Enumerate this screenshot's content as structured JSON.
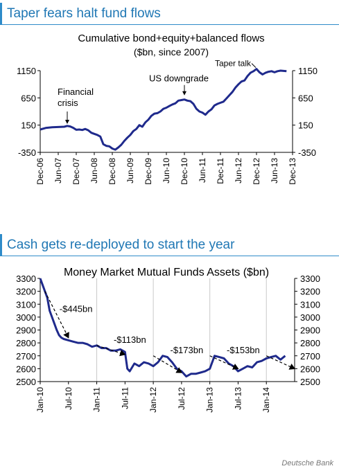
{
  "panels": [
    {
      "header": "Taper fears halt fund flows",
      "chart_data": {
        "type": "line",
        "title": "Cumulative bond+equity+balanced flows",
        "subtitle": "($bn, since 2007)",
        "xlabel": "",
        "ylabel": "",
        "x_ticks": [
          "Dec-06",
          "Jun-07",
          "Dec-07",
          "Jun-08",
          "Dec-08",
          "Jun-09",
          "Dec-09",
          "Jun-10",
          "Dec-10",
          "Jun-11",
          "Dec-11",
          "Jun-12",
          "Dec-12",
          "Jun-13",
          "Dec-13"
        ],
        "y_ticks": [
          1150,
          650,
          150,
          -350
        ],
        "ylim": [
          -350,
          1150
        ],
        "xlim": [
          0,
          84
        ],
        "grid": false,
        "series": [
          {
            "color": "#1F2A8C",
            "points": [
              [
                0,
                70
              ],
              [
                2,
                100
              ],
              [
                4,
                110
              ],
              [
                6,
                115
              ],
              [
                8,
                120
              ],
              [
                9,
                135
              ],
              [
                10,
                125
              ],
              [
                11,
                100
              ],
              [
                12,
                65
              ],
              [
                13,
                70
              ],
              [
                14,
                60
              ],
              [
                15,
                80
              ],
              [
                16,
                55
              ],
              [
                17,
                10
              ],
              [
                18,
                -10
              ],
              [
                19,
                -30
              ],
              [
                20,
                -60
              ],
              [
                21,
                -200
              ],
              [
                22,
                -230
              ],
              [
                23,
                -240
              ],
              [
                24,
                -280
              ],
              [
                25,
                -300
              ],
              [
                26,
                -260
              ],
              [
                27,
                -210
              ],
              [
                28,
                -140
              ],
              [
                29,
                -80
              ],
              [
                30,
                -30
              ],
              [
                31,
                40
              ],
              [
                32,
                80
              ],
              [
                33,
                150
              ],
              [
                34,
                120
              ],
              [
                35,
                200
              ],
              [
                36,
                250
              ],
              [
                37,
                320
              ],
              [
                38,
                360
              ],
              [
                39,
                370
              ],
              [
                40,
                400
              ],
              [
                41,
                450
              ],
              [
                42,
                470
              ],
              [
                43,
                500
              ],
              [
                44,
                530
              ],
              [
                45,
                550
              ],
              [
                46,
                600
              ],
              [
                47,
                610
              ],
              [
                48,
                620
              ],
              [
                49,
                600
              ],
              [
                50,
                590
              ],
              [
                51,
                540
              ],
              [
                52,
                450
              ],
              [
                53,
                400
              ],
              [
                54,
                380
              ],
              [
                55,
                340
              ],
              [
                56,
                400
              ],
              [
                57,
                440
              ],
              [
                58,
                510
              ],
              [
                59,
                540
              ],
              [
                60,
                560
              ],
              [
                61,
                580
              ],
              [
                62,
                640
              ],
              [
                63,
                700
              ],
              [
                64,
                760
              ],
              [
                65,
                840
              ],
              [
                66,
                900
              ],
              [
                67,
                950
              ],
              [
                68,
                970
              ],
              [
                69,
                1050
              ],
              [
                70,
                1110
              ],
              [
                71,
                1140
              ],
              [
                72,
                1180
              ],
              [
                73,
                1120
              ],
              [
                74,
                1080
              ],
              [
                75,
                1110
              ],
              [
                76,
                1130
              ],
              [
                77,
                1140
              ],
              [
                78,
                1120
              ],
              [
                79,
                1140
              ],
              [
                80,
                1150
              ],
              [
                81,
                1145
              ],
              [
                82,
                1140
              ]
            ]
          }
        ],
        "annotations": [
          {
            "text": "Financial crisis",
            "x": 9,
            "y": 120
          },
          {
            "text": "US downgrade",
            "x": 48,
            "y": 620
          },
          {
            "text": "Taper talk",
            "x": 72,
            "y": 1180
          }
        ]
      }
    },
    {
      "header": "Cash gets re-deployed to start the year",
      "chart_data": {
        "type": "line",
        "title": "Money Market Mutual Funds Assets ($bn)",
        "xlabel": "",
        "ylabel": "",
        "x_ticks": [
          "Jan-10",
          "Jul-10",
          "Jan-11",
          "Jul-11",
          "Jan-12",
          "Jul-12",
          "Jan-13",
          "Jul-13",
          "Jan-14"
        ],
        "y_ticks": [
          3300,
          3200,
          3100,
          3000,
          2900,
          2800,
          2700,
          2600,
          2500
        ],
        "ylim": [
          2500,
          3300
        ],
        "xlim": [
          0,
          54
        ],
        "grid": "vertical-at-january",
        "series": [
          {
            "color": "#1F2A8C",
            "points": [
              [
                0,
                3300
              ],
              [
                0.5,
                3250
              ],
              [
                1,
                3200
              ],
              [
                1.5,
                3150
              ],
              [
                2,
                3050
              ],
              [
                2.5,
                3000
              ],
              [
                3,
                2950
              ],
              [
                3.5,
                2900
              ],
              [
                4,
                2860
              ],
              [
                4.5,
                2840
              ],
              [
                5,
                2830
              ],
              [
                6,
                2820
              ],
              [
                7,
                2810
              ],
              [
                8,
                2800
              ],
              [
                9,
                2800
              ],
              [
                10,
                2790
              ],
              [
                11,
                2770
              ],
              [
                12,
                2780
              ],
              [
                13,
                2760
              ],
              [
                14,
                2760
              ],
              [
                15,
                2740
              ],
              [
                16,
                2740
              ],
              [
                17,
                2750
              ],
              [
                18,
                2730
              ],
              [
                18.5,
                2600
              ],
              [
                19,
                2580
              ],
              [
                20,
                2640
              ],
              [
                21,
                2620
              ],
              [
                22,
                2650
              ],
              [
                23,
                2640
              ],
              [
                24,
                2620
              ],
              [
                25,
                2650
              ],
              [
                26,
                2700
              ],
              [
                27,
                2690
              ],
              [
                28,
                2650
              ],
              [
                29,
                2600
              ],
              [
                30,
                2580
              ],
              [
                31,
                2540
              ],
              [
                32,
                2560
              ],
              [
                33,
                2560
              ],
              [
                34,
                2570
              ],
              [
                35,
                2580
              ],
              [
                36,
                2600
              ],
              [
                37,
                2700
              ],
              [
                38,
                2690
              ],
              [
                39,
                2680
              ],
              [
                40,
                2640
              ],
              [
                41,
                2620
              ],
              [
                42,
                2580
              ],
              [
                43,
                2600
              ],
              [
                44,
                2620
              ],
              [
                45,
                2610
              ],
              [
                46,
                2650
              ],
              [
                47,
                2660
              ],
              [
                48,
                2680
              ],
              [
                49,
                2690
              ],
              [
                50,
                2700
              ],
              [
                51,
                2670
              ],
              [
                52,
                2700
              ]
            ]
          }
        ],
        "projection_lines": [
          {
            "label": "-$445bn",
            "from": [
              1,
              3200
            ],
            "to": [
              6,
              2840
            ]
          },
          {
            "label": "-$113bn",
            "from": [
              12,
              2780
            ],
            "to": [
              18,
              2710
            ]
          },
          {
            "label": "-$173bn",
            "from": [
              24,
              2700
            ],
            "to": [
              30,
              2570
            ]
          },
          {
            "label": "-$153bn",
            "from": [
              36,
              2700
            ],
            "to": [
              42,
              2600
            ]
          },
          {
            "label": "",
            "from": [
              48,
              2700
            ],
            "to": [
              54,
              2600
            ]
          }
        ]
      }
    }
  ],
  "source": "Deutsche Bank"
}
